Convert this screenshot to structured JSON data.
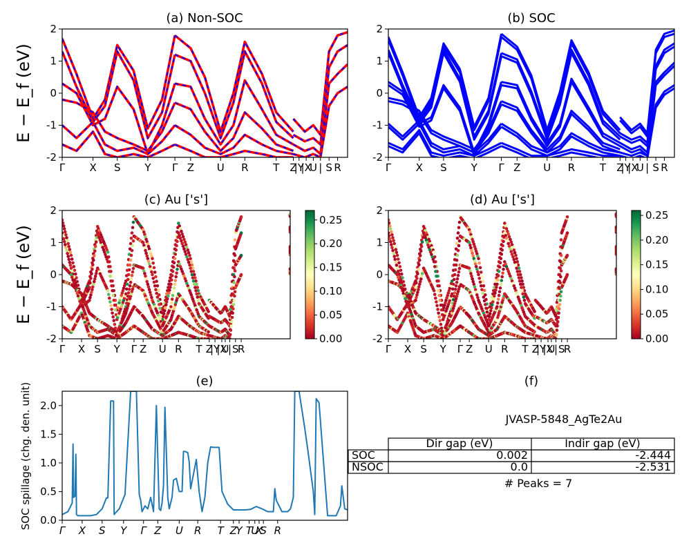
{
  "figure": {
    "ylabel_band": "E − E_f (eV)",
    "ylabel_spillage": "SOC spillage (chg. den. unit)"
  },
  "kpath": {
    "labels": [
      "Γ",
      "X",
      "S",
      "Y",
      "Γ",
      "Z",
      "U",
      "R",
      "T",
      "Z",
      "|Y",
      "|X",
      "U",
      "|",
      "S",
      "R"
    ],
    "positions": [
      0,
      0.108,
      0.193,
      0.3,
      0.395,
      0.45,
      0.555,
      0.64,
      0.75,
      0.81,
      0.83,
      0.855,
      0.88,
      0.905,
      0.935,
      0.965
    ],
    "positions_axis_c": [
      0,
      0.085,
      0.155,
      0.24,
      0.315,
      0.355,
      0.44,
      0.51,
      0.6,
      0.645,
      0.67,
      0.7,
      0.715,
      0.735,
      0.76,
      0.785
    ],
    "spill_labels": [
      "Γ",
      "X",
      "S",
      "Y",
      "Γ",
      "Z",
      "U",
      "R",
      "T",
      "Z",
      "Y",
      "T",
      "U",
      "X",
      "S",
      "R"
    ],
    "spill_positions": [
      0,
      0.07,
      0.14,
      0.215,
      0.285,
      0.335,
      0.41,
      0.475,
      0.555,
      0.6,
      0.62,
      0.655,
      0.675,
      0.69,
      0.705,
      0.755
    ]
  },
  "colors": {
    "red": "#ff0000",
    "blue": "#0000ff",
    "spill": "#1f77b4",
    "cmap": [
      "#a50026",
      "#d73027",
      "#f46d43",
      "#fdae61",
      "#fee08b",
      "#ffffbf",
      "#d9ef8b",
      "#a6d96a",
      "#66bd63",
      "#1a9850",
      "#006837"
    ]
  },
  "chart_data": [
    {
      "id": "a",
      "type": "line",
      "title": "(a) Non-SOC",
      "ylim": [
        -2,
        2
      ],
      "yticks": [
        -2,
        -1,
        0,
        1,
        2
      ],
      "series": [
        {
          "x": [
            0,
            0.05,
            0.108,
            0.15,
            0.193,
            0.25,
            0.3,
            0.35,
            0.395
          ],
          "y": [
            1.7,
            0.6,
            -0.8,
            -0.2,
            1.5,
            0.7,
            -1.1,
            -0.2,
            1.8
          ]
        },
        {
          "x": [
            0,
            0.05,
            0.108,
            0.15,
            0.193,
            0.25,
            0.3,
            0.35,
            0.395
          ],
          "y": [
            1.3,
            0.2,
            -0.9,
            -0.4,
            1.3,
            0.4,
            -1.4,
            -0.6,
            1.2
          ]
        },
        {
          "x": [
            0,
            0.05,
            0.108,
            0.15,
            0.193,
            0.25,
            0.3,
            0.35,
            0.395
          ],
          "y": [
            0.3,
            0.0,
            -1.0,
            -0.8,
            0.2,
            -0.5,
            -1.9,
            -1.0,
            0.3
          ]
        },
        {
          "x": [
            0,
            0.05,
            0.108,
            0.15,
            0.193,
            0.25,
            0.3,
            0.35,
            0.395
          ],
          "y": [
            -0.2,
            -0.3,
            -0.6,
            -1.2,
            -1.4,
            -1.6,
            -1.8,
            -1.2,
            -0.3
          ]
        },
        {
          "x": [
            0,
            0.05,
            0.108,
            0.15,
            0.193,
            0.25,
            0.3,
            0.35,
            0.395
          ],
          "y": [
            -1.0,
            -1.4,
            -0.9,
            -1.6,
            -1.8,
            -1.7,
            -1.9,
            -1.5,
            -1.0
          ]
        },
        {
          "x": [
            0,
            0.05,
            0.108,
            0.15,
            0.193,
            0.25,
            0.3,
            0.35,
            0.395
          ],
          "y": [
            -1.6,
            -1.8,
            -1.2,
            -1.9,
            -2.0,
            -1.9,
            -2.0,
            -1.8,
            -1.6
          ]
        },
        {
          "x": [
            0.395,
            0.45,
            0.5,
            0.555,
            0.6,
            0.64,
            0.7,
            0.75,
            0.81
          ],
          "y": [
            1.8,
            1.4,
            0.5,
            -1.2,
            0.0,
            1.6,
            0.6,
            -0.6,
            -1.2
          ]
        },
        {
          "x": [
            0.395,
            0.45,
            0.5,
            0.555,
            0.6,
            0.64,
            0.7,
            0.75,
            0.81
          ],
          "y": [
            1.2,
            1.0,
            0.0,
            -1.4,
            -0.3,
            1.3,
            0.3,
            -0.9,
            -1.4
          ]
        },
        {
          "x": [
            0.395,
            0.45,
            0.5,
            0.555,
            0.6,
            0.64,
            0.7,
            0.75,
            0.81
          ],
          "y": [
            0.3,
            0.2,
            -0.8,
            -1.6,
            -1.0,
            0.4,
            -0.5,
            -1.3,
            -1.6
          ]
        },
        {
          "x": [
            0.395,
            0.45,
            0.5,
            0.555,
            0.6,
            0.64,
            0.7,
            0.75,
            0.81
          ],
          "y": [
            -0.3,
            -0.5,
            -1.2,
            -1.8,
            -1.4,
            -0.6,
            -1.1,
            -1.6,
            -1.8
          ]
        },
        {
          "x": [
            0.395,
            0.45,
            0.5,
            0.555,
            0.6,
            0.64,
            0.7,
            0.75,
            0.81
          ],
          "y": [
            -1.0,
            -1.3,
            -1.7,
            -1.9,
            -1.7,
            -1.3,
            -1.6,
            -1.8,
            -1.9
          ]
        },
        {
          "x": [
            0.395,
            0.45,
            0.5,
            0.555,
            0.6,
            0.64,
            0.7,
            0.75,
            0.81
          ],
          "y": [
            -1.6,
            -1.8,
            -2.0,
            -2.0,
            -1.9,
            -1.8,
            -1.9,
            -2.0,
            -2.0
          ]
        },
        {
          "x": [
            0.81,
            0.85,
            0.88,
            0.905,
            0.935,
            0.965,
            1.0
          ],
          "y": [
            -0.8,
            -1.2,
            -1.0,
            -1.3,
            1.3,
            1.8,
            1.9
          ]
        },
        {
          "x": [
            0.81,
            0.85,
            0.88,
            0.905,
            0.935,
            0.965,
            1.0
          ],
          "y": [
            -1.3,
            -1.5,
            -1.4,
            -1.6,
            0.8,
            1.3,
            1.5
          ]
        },
        {
          "x": [
            0.81,
            0.85,
            0.88,
            0.905,
            0.935,
            0.965,
            1.0
          ],
          "y": [
            -1.6,
            -1.8,
            -1.7,
            -1.9,
            0.3,
            0.6,
            0.9
          ]
        },
        {
          "x": [
            0.81,
            0.85,
            0.88,
            0.905,
            0.935,
            0.965,
            1.0
          ],
          "y": [
            -1.9,
            -2.0,
            -1.9,
            -2.0,
            -0.4,
            0.0,
            0.2
          ]
        }
      ]
    },
    {
      "id": "b",
      "type": "line",
      "title": "(b) SOC",
      "ylim": [
        -2,
        2
      ],
      "yticks": [
        -2,
        -1,
        0,
        1,
        2
      ]
    },
    {
      "id": "c",
      "type": "scatter",
      "title": "(c)  Au ['s']",
      "ylim": [
        -2,
        2
      ],
      "yticks": [
        -2,
        -1,
        0,
        1,
        2
      ],
      "colorbar": {
        "min": 0,
        "max": 0.27,
        "ticks": [
          "0.00",
          "0.05",
          "0.10",
          "0.15",
          "0.20",
          "0.25"
        ]
      }
    },
    {
      "id": "d",
      "type": "scatter",
      "title": "(d) Au ['s']",
      "ylim": [
        -2,
        2
      ],
      "yticks": [
        -2,
        -1,
        0,
        1,
        2
      ],
      "colorbar": {
        "min": 0,
        "max": 0.26,
        "ticks": [
          "0.00",
          "0.05",
          "0.10",
          "0.15",
          "0.20",
          "0.25"
        ]
      }
    },
    {
      "id": "e",
      "type": "line",
      "title": "(e)",
      "ylim": [
        0,
        2.25
      ],
      "yticks": [
        "0.0",
        "0.5",
        "1.0",
        "1.5",
        "2.0"
      ],
      "x": [
        0,
        0.02,
        0.035,
        0.038,
        0.04,
        0.045,
        0.048,
        0.05,
        0.055,
        0.06,
        0.08,
        0.1,
        0.12,
        0.14,
        0.155,
        0.16,
        0.17,
        0.18,
        0.182,
        0.185,
        0.2,
        0.22,
        0.24,
        0.26,
        0.27,
        0.275,
        0.28,
        0.29,
        0.3,
        0.31,
        0.32,
        0.33,
        0.34,
        0.345,
        0.35,
        0.355,
        0.36,
        0.37,
        0.375,
        0.385,
        0.39,
        0.4,
        0.41,
        0.42,
        0.425,
        0.43,
        0.44,
        0.445,
        0.45,
        0.47,
        0.48,
        0.49,
        0.5,
        0.51,
        0.52,
        0.53,
        0.55,
        0.56,
        0.58,
        0.6,
        0.62,
        0.64,
        0.66,
        0.68,
        0.7,
        0.72,
        0.74,
        0.745,
        0.75,
        0.77,
        0.79,
        0.8,
        0.81,
        0.815,
        0.83,
        0.85,
        0.86,
        0.88,
        0.885,
        0.89,
        0.9,
        0.93,
        0.95,
        0.96,
        0.975,
        0.98,
        0.99,
        1.0
      ],
      "y": [
        0.1,
        0.15,
        0.3,
        1.33,
        0.4,
        0.42,
        1.15,
        0.1,
        0.08,
        0.08,
        0.08,
        0.08,
        0.1,
        0.2,
        0.39,
        0.39,
        2.08,
        2.08,
        0.1,
        0.12,
        0.2,
        0.45,
        2.25,
        2.25,
        0.45,
        0.35,
        0.15,
        0.25,
        0.2,
        0.4,
        0.15,
        2.0,
        0.2,
        0.17,
        0.3,
        0.6,
        1.97,
        0.4,
        0.2,
        0.4,
        0.7,
        0.73,
        0.5,
        0.5,
        1.2,
        1.2,
        1.18,
        1.02,
        0.55,
        1.06,
        0.5,
        0.15,
        0.4,
        1.0,
        1.28,
        1.27,
        1.27,
        0.5,
        0.28,
        0.18,
        0.18,
        0.18,
        0.19,
        0.24,
        0.2,
        0.15,
        0.15,
        0.55,
        0.35,
        0.15,
        0.15,
        0.2,
        0.4,
        2.25,
        2.25,
        1.6,
        1.25,
        0.5,
        0.1,
        2.12,
        2.05,
        0.08,
        0.08,
        0.08,
        0.25,
        0.6,
        0.2,
        0.18
      ]
    }
  ],
  "panel_f": {
    "title": "(f)",
    "subtitle": "JVASP-5848_AgTe2Au",
    "headers": [
      "Dir gap (eV)",
      "Indir gap (eV)"
    ],
    "rows": [
      {
        "label": "SOC",
        "dir": "0.002",
        "indir": "-2.444"
      },
      {
        "label": "NSOC",
        "dir": "0.0",
        "indir": "-2.531"
      }
    ],
    "peaks": "# Peaks = 7"
  }
}
